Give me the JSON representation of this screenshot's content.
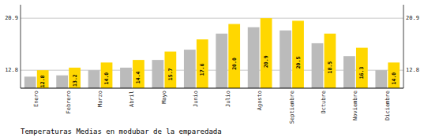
{
  "chart_data": {
    "type": "bar",
    "title": "Temperaturas Medias en modubar de la emparedada",
    "categories": [
      "Enero",
      "Febrero",
      "Marzo",
      "Abril",
      "Mayo",
      "Junio",
      "Julio",
      "Agosto",
      "Septiembre",
      "Octubre",
      "Noviembre",
      "Diciembre"
    ],
    "series": [
      {
        "color": "#BBBBBB",
        "values": [
          11.8,
          12.0,
          12.8,
          13.2,
          14.4,
          16.0,
          18.5,
          19.5,
          19.0,
          17.0,
          15.0,
          12.8
        ]
      },
      {
        "color": "#FFD700",
        "values": [
          12.8,
          13.2,
          14.0,
          14.4,
          15.7,
          17.6,
          20.0,
          20.9,
          20.5,
          18.5,
          16.3,
          14.0
        ],
        "data_labels": true,
        "value_labels": [
          "12.8",
          "13.2",
          "14.0",
          "14.4",
          "15.7",
          "17.6",
          "20.0",
          "20.9",
          "20.5",
          "18.5",
          "16.3",
          "14.0"
        ]
      }
    ],
    "ylim": [
      10.0,
      23.0
    ],
    "yticks": [
      12.8,
      20.9
    ],
    "grid": true
  }
}
